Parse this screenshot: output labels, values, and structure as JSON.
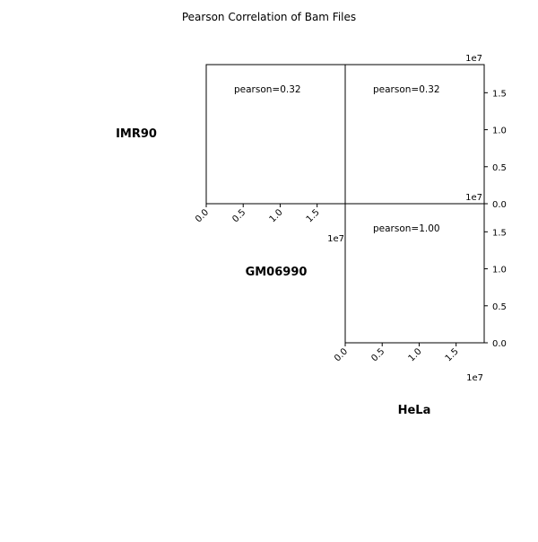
{
  "chart_data": {
    "type": "scatter",
    "title": "Pearson Correlation of Bam Files",
    "samples": [
      "IMR90",
      "GM06990",
      "HeLa"
    ],
    "axis_offset_label": "1e7",
    "ticks": [
      0.0,
      0.5,
      1.0,
      1.5
    ],
    "tick_labels": [
      "0.0",
      "0.5",
      "1.0",
      "1.5"
    ],
    "xlim": [
      0,
      1.88
    ],
    "ylim": [
      0,
      1.88
    ],
    "grid": false,
    "panels": [
      {
        "row_sample": "IMR90",
        "col_sample": "GM06990",
        "pearson": "pearson=0.32"
      },
      {
        "row_sample": "IMR90",
        "col_sample": "HeLa",
        "pearson": "pearson=0.32"
      },
      {
        "row_sample": "GM06990",
        "col_sample": "HeLa",
        "pearson": "pearson=1.00"
      }
    ]
  }
}
